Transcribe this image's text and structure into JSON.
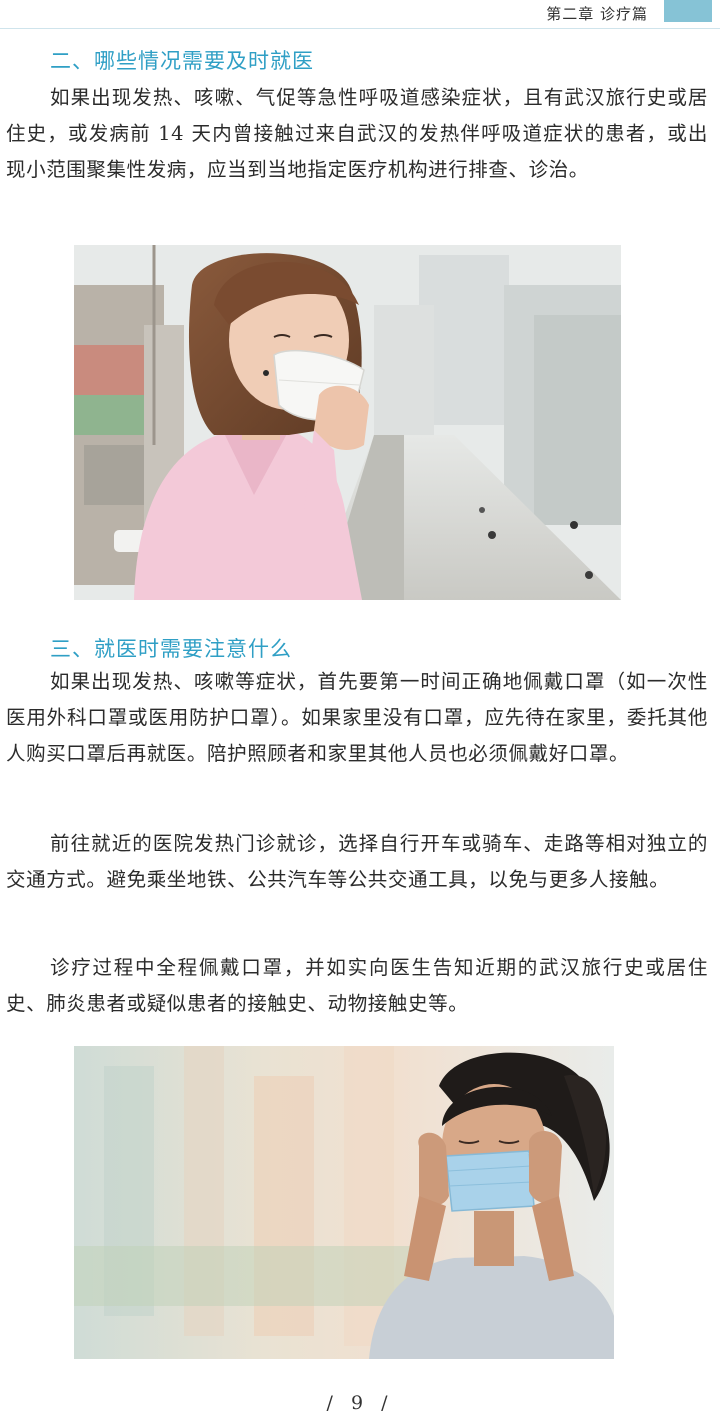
{
  "header": {
    "chapter": "第二章  诊疗篇"
  },
  "section2": {
    "heading": "二、哪些情况需要及时就医",
    "paragraphs": [
      "如果出现发热、咳嗽、气促等急性呼吸道感染症状，且有武汉旅行史或居住史，或发病前 14 天内曾接触过来自武汉的发热伴呼吸道症状的患者，或出现小范围聚集性发病，应当到当地指定医疗机构进行排查、诊治。"
    ]
  },
  "section3": {
    "heading": "三、就医时需要注意什么",
    "paragraphs": [
      "如果出现发热、咳嗽等症状，首先要第一时间正确地佩戴口罩（如一次性医用外科口罩或医用防护口罩）。如果家里没有口罩，应先待在家里，委托其他人购买口罩后再就医。陪护照顾者和家里其他人员也必须佩戴好口罩。",
      "前往就近的医院发热门诊就诊，选择自行开车或骑车、走路等相对独立的交通方式。避免乘坐地铁、公共汽车等公共交通工具，以免与更多人接触。",
      "诊疗过程中全程佩戴口罩，并如实向医生告知近期的武汉旅行史或居住史、肺炎患者或疑似患者的接触史、动物接触史等。"
    ]
  },
  "footer": {
    "page_number": "/ 9 /"
  }
}
